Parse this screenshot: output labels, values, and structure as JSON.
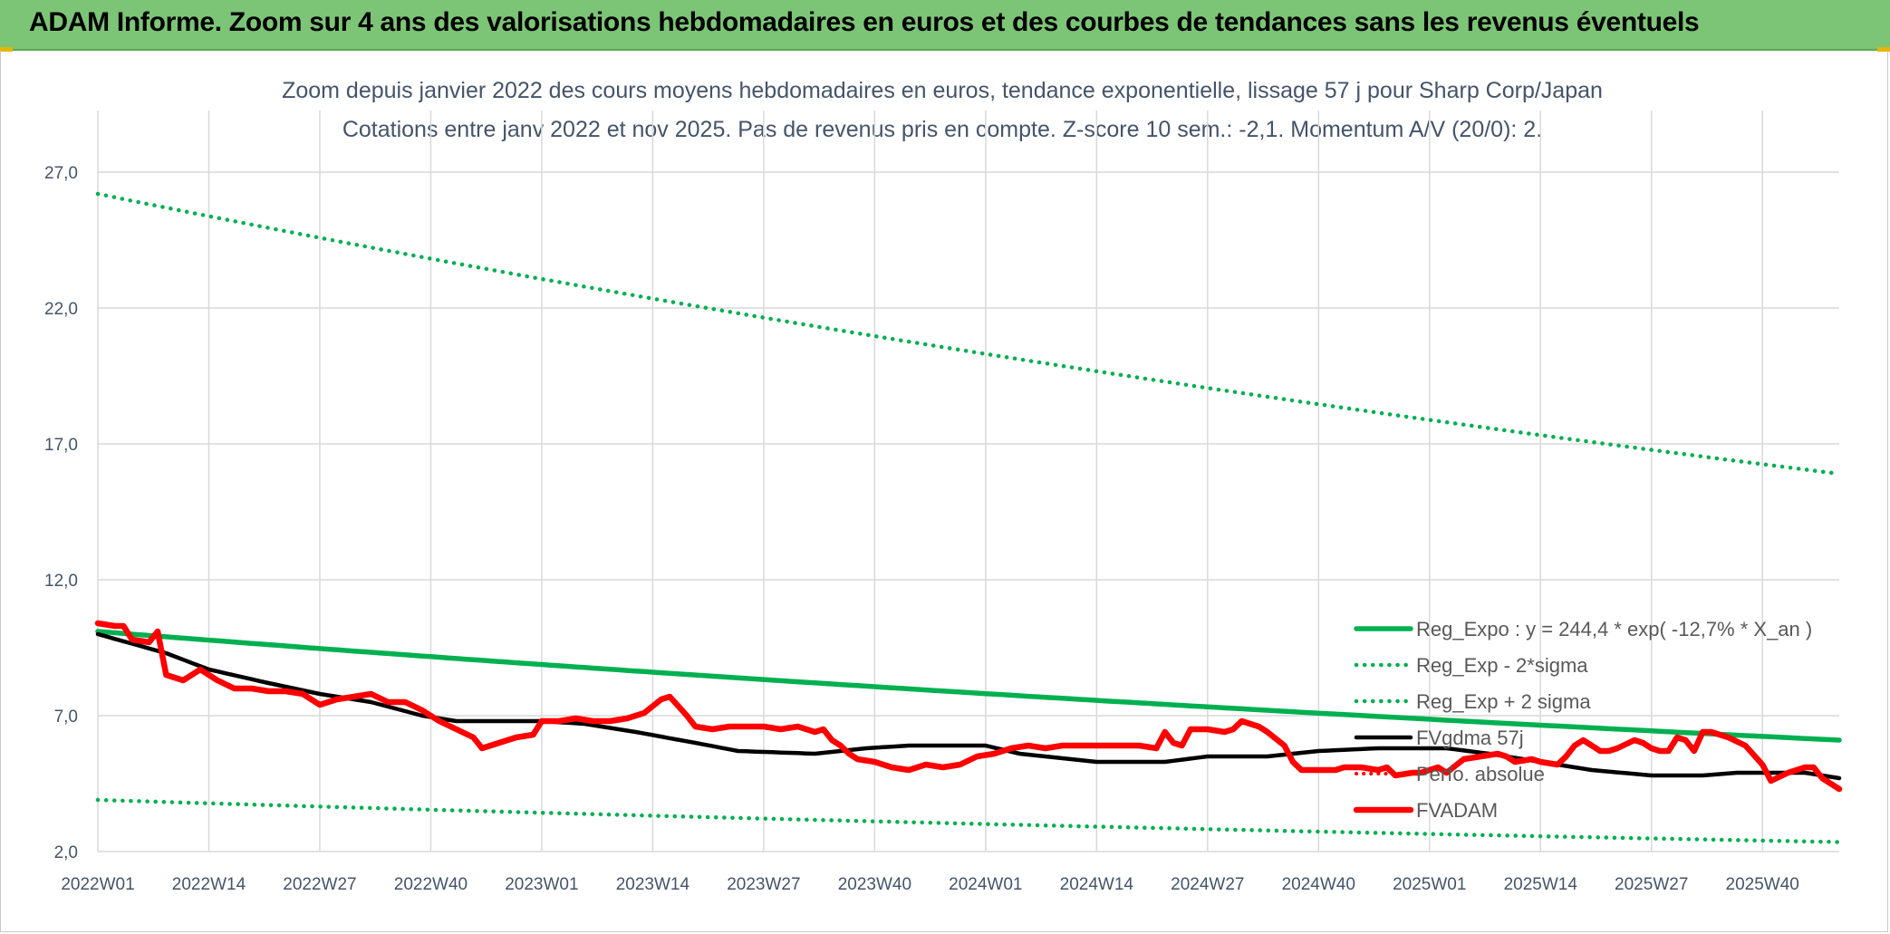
{
  "banner": {
    "title": "ADAM Informe. Zoom sur 4 ans des valorisations hebdomadaires en euros et des courbes de tendances sans les revenus éventuels"
  },
  "colors": {
    "banner": "#7cc576",
    "green": "#00b050",
    "red": "#ff0000",
    "black": "#000000",
    "grid": "#d9d9d9",
    "text": "#44546a"
  },
  "chart_data": {
    "type": "line",
    "title_line1": "Zoom depuis janvier 2022 des cours moyens hebdomadaires en euros, tendance exponentielle, lissage 57 j pour Sharp Corp/Japan",
    "title_line2": "Cotations entre janv 2022 et nov 2025. Pas de revenus pris en compte. Z-score 10 sem.: -2,1. Momentum A/V (20/0): 2.",
    "xlabel": "",
    "ylabel": "",
    "ylim": [
      2.0,
      29.0
    ],
    "y_ticks": [
      "2,0",
      "7,0",
      "12,0",
      "17,0",
      "22,0",
      "27,0"
    ],
    "y_tick_values": [
      2,
      7,
      12,
      17,
      22,
      27
    ],
    "x_tick_labels": [
      "2022W01",
      "2022W14",
      "2022W27",
      "2022W40",
      "2023W01",
      "2023W14",
      "2023W27",
      "2023W40",
      "2024W01",
      "2024W14",
      "2024W27",
      "2024W40",
      "2025W01",
      "2025W14",
      "2025W27",
      "2025W40"
    ],
    "x_tick_step_weeks": 13,
    "n_weeks": 205,
    "legend_position": "right",
    "series": [
      {
        "name": "Reg_Expo : y = 244,4 * exp( -12,7% *  X_an )",
        "style": "solid-green",
        "start": 10.1,
        "end": 6.1
      },
      {
        "name": "Reg_Exp - 2*sigma",
        "style": "dotted-green",
        "start": 3.9,
        "end": 2.35
      },
      {
        "name": "Reg_Exp + 2 sigma",
        "style": "dotted-green",
        "start": 26.2,
        "end": 15.9
      },
      {
        "name": "FVgdma 57j",
        "style": "solid-black",
        "anchors": [
          [
            0,
            10.0
          ],
          [
            8,
            9.3
          ],
          [
            13,
            8.7
          ],
          [
            20,
            8.2
          ],
          [
            26,
            7.8
          ],
          [
            32,
            7.5
          ],
          [
            38,
            7.0
          ],
          [
            42,
            6.8
          ],
          [
            52,
            6.8
          ],
          [
            57,
            6.7
          ],
          [
            63,
            6.4
          ],
          [
            70,
            6.0
          ],
          [
            75,
            5.7
          ],
          [
            84,
            5.6
          ],
          [
            90,
            5.8
          ],
          [
            95,
            5.9
          ],
          [
            104,
            5.9
          ],
          [
            108,
            5.6
          ],
          [
            117,
            5.3
          ],
          [
            125,
            5.3
          ],
          [
            130,
            5.5
          ],
          [
            137,
            5.5
          ],
          [
            143,
            5.7
          ],
          [
            150,
            5.8
          ],
          [
            158,
            5.8
          ],
          [
            163,
            5.6
          ],
          [
            167,
            5.4
          ],
          [
            175,
            5.0
          ],
          [
            182,
            4.8
          ],
          [
            188,
            4.8
          ],
          [
            192,
            4.9
          ],
          [
            200,
            4.9
          ],
          [
            204,
            4.7
          ]
        ]
      },
      {
        "name": "Perfo. absolue",
        "style": "dotted-red",
        "anchors": []
      },
      {
        "name": "FVADAM",
        "style": "solid-red",
        "anchors": [
          [
            0,
            10.4
          ],
          [
            2,
            10.3
          ],
          [
            3,
            10.3
          ],
          [
            4,
            9.8
          ],
          [
            6,
            9.7
          ],
          [
            7,
            10.1
          ],
          [
            8,
            8.5
          ],
          [
            10,
            8.3
          ],
          [
            12,
            8.7
          ],
          [
            14,
            8.3
          ],
          [
            16,
            8.0
          ],
          [
            18,
            8.0
          ],
          [
            20,
            7.9
          ],
          [
            22,
            7.9
          ],
          [
            24,
            7.8
          ],
          [
            26,
            7.4
          ],
          [
            28,
            7.6
          ],
          [
            30,
            7.7
          ],
          [
            32,
            7.8
          ],
          [
            34,
            7.5
          ],
          [
            36,
            7.5
          ],
          [
            38,
            7.2
          ],
          [
            40,
            6.8
          ],
          [
            42,
            6.5
          ],
          [
            44,
            6.2
          ],
          [
            45,
            5.8
          ],
          [
            47,
            6.0
          ],
          [
            49,
            6.2
          ],
          [
            51,
            6.3
          ],
          [
            52,
            6.8
          ],
          [
            54,
            6.8
          ],
          [
            56,
            6.9
          ],
          [
            58,
            6.8
          ],
          [
            60,
            6.8
          ],
          [
            62,
            6.9
          ],
          [
            64,
            7.1
          ],
          [
            66,
            7.6
          ],
          [
            67,
            7.7
          ],
          [
            69,
            7.0
          ],
          [
            70,
            6.6
          ],
          [
            72,
            6.5
          ],
          [
            74,
            6.6
          ],
          [
            76,
            6.6
          ],
          [
            78,
            6.6
          ],
          [
            80,
            6.5
          ],
          [
            82,
            6.6
          ],
          [
            84,
            6.4
          ],
          [
            85,
            6.5
          ],
          [
            86,
            6.1
          ],
          [
            87,
            5.9
          ],
          [
            88,
            5.6
          ],
          [
            89,
            5.4
          ],
          [
            91,
            5.3
          ],
          [
            93,
            5.1
          ],
          [
            95,
            5.0
          ],
          [
            97,
            5.2
          ],
          [
            99,
            5.1
          ],
          [
            101,
            5.2
          ],
          [
            103,
            5.5
          ],
          [
            105,
            5.6
          ],
          [
            107,
            5.8
          ],
          [
            109,
            5.9
          ],
          [
            111,
            5.8
          ],
          [
            113,
            5.9
          ],
          [
            115,
            5.9
          ],
          [
            116,
            5.9
          ],
          [
            118,
            5.9
          ],
          [
            120,
            5.9
          ],
          [
            122,
            5.9
          ],
          [
            124,
            5.8
          ],
          [
            125,
            6.4
          ],
          [
            126,
            6.0
          ],
          [
            127,
            5.9
          ],
          [
            128,
            6.5
          ],
          [
            130,
            6.5
          ],
          [
            132,
            6.4
          ],
          [
            133,
            6.5
          ],
          [
            134,
            6.8
          ],
          [
            136,
            6.6
          ],
          [
            137,
            6.4
          ],
          [
            139,
            5.9
          ],
          [
            140,
            5.3
          ],
          [
            141,
            5.0
          ],
          [
            143,
            5.0
          ],
          [
            145,
            5.0
          ],
          [
            146,
            5.1
          ],
          [
            147,
            5.1
          ],
          [
            148,
            5.1
          ],
          [
            150,
            5.0
          ],
          [
            151,
            5.1
          ],
          [
            152,
            4.8
          ],
          [
            154,
            4.9
          ],
          [
            155,
            4.9
          ],
          [
            156,
            5.0
          ],
          [
            157,
            5.1
          ],
          [
            158,
            4.9
          ],
          [
            160,
            5.4
          ],
          [
            162,
            5.5
          ],
          [
            164,
            5.6
          ],
          [
            165,
            5.5
          ],
          [
            166,
            5.3
          ],
          [
            168,
            5.4
          ],
          [
            169,
            5.3
          ],
          [
            171,
            5.2
          ],
          [
            172,
            5.5
          ],
          [
            173,
            5.9
          ],
          [
            174,
            6.1
          ],
          [
            175,
            5.9
          ],
          [
            176,
            5.7
          ],
          [
            177,
            5.7
          ],
          [
            178,
            5.8
          ],
          [
            180,
            6.1
          ],
          [
            181,
            6.0
          ],
          [
            182,
            5.8
          ],
          [
            183,
            5.7
          ],
          [
            184,
            5.7
          ],
          [
            185,
            6.2
          ],
          [
            186,
            6.1
          ],
          [
            187,
            5.7
          ],
          [
            188,
            6.4
          ],
          [
            189,
            6.4
          ],
          [
            191,
            6.2
          ],
          [
            193,
            5.9
          ],
          [
            195,
            5.2
          ],
          [
            196,
            4.6
          ],
          [
            198,
            4.9
          ],
          [
            200,
            5.1
          ],
          [
            201,
            5.1
          ],
          [
            202,
            4.7
          ],
          [
            204,
            4.3
          ]
        ]
      }
    ]
  }
}
